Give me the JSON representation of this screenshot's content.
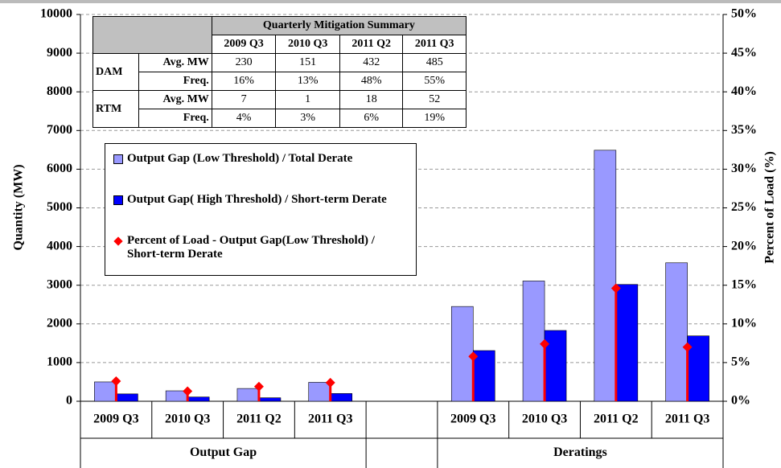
{
  "chart_data": {
    "type": "bar",
    "y_label": "Quantity (MW)",
    "y2_label": "Percent of Load (%)",
    "categories": [
      "2009 Q3",
      "2010 Q3",
      "2011 Q2",
      "2011 Q3",
      null,
      "2009 Q3",
      "2010 Q3",
      "2011 Q2",
      "2011 Q3"
    ],
    "groups": [
      {
        "label": "Output Gap",
        "start": 0,
        "end": 3
      },
      {
        "label": "Deratings",
        "start": 5,
        "end": 8
      }
    ],
    "series": [
      {
        "name": "Output Gap (Low Threshold) / Total Derate",
        "color": "#9999ff",
        "kind": "bar",
        "values": [
          500,
          270,
          330,
          490,
          null,
          2450,
          3110,
          6490,
          3580
        ]
      },
      {
        "name": "Output Gap( High Threshold) / Short-term Derate",
        "color": "#0000ff",
        "kind": "bar",
        "values": [
          190,
          110,
          90,
          200,
          null,
          1310,
          1830,
          3020,
          1690
        ]
      },
      {
        "name": "Percent of Load - Output Gap(Low Threshold) / Short-term Derate",
        "color": "#ff0000",
        "kind": "marker",
        "axis": "y2",
        "values": [
          2.6,
          1.3,
          1.9,
          2.4,
          null,
          5.8,
          7.4,
          14.6,
          7.0
        ]
      }
    ],
    "ylim": [
      0,
      10000
    ],
    "yticks": [
      0,
      1000,
      2000,
      3000,
      4000,
      5000,
      6000,
      7000,
      8000,
      9000,
      10000
    ],
    "y2lim": [
      0,
      50
    ],
    "y2ticks": [
      {
        "value": 0,
        "label": "0%"
      },
      {
        "value": 5,
        "label": "5%"
      },
      {
        "value": 10,
        "label": "10%"
      },
      {
        "value": 15,
        "label": "15%"
      },
      {
        "value": 20,
        "label": "20%"
      },
      {
        "value": 25,
        "label": "25%"
      },
      {
        "value": 30,
        "label": "30%"
      },
      {
        "value": 35,
        "label": "35%"
      },
      {
        "value": 40,
        "label": "40%"
      },
      {
        "value": 45,
        "label": "45%"
      },
      {
        "value": 50,
        "label": "50%"
      }
    ],
    "grid": true,
    "table": {
      "title": "Quarterly Mitigation Summary",
      "columns": [
        "2009 Q3",
        "2010 Q3",
        "2011 Q2",
        "2011 Q3"
      ],
      "rows": [
        {
          "group": "DAM",
          "metrics": [
            {
              "name": "Avg. MW",
              "values": [
                230,
                151,
                432,
                485
              ]
            },
            {
              "name": "Freq.",
              "values": [
                "16%",
                "13%",
                "48%",
                "55%"
              ]
            }
          ]
        },
        {
          "group": "RTM",
          "metrics": [
            {
              "name": "Avg. MW",
              "values": [
                7,
                1,
                18,
                52
              ]
            },
            {
              "name": "Freq.",
              "values": [
                "4%",
                "3%",
                "6%",
                "19%"
              ]
            }
          ]
        }
      ]
    }
  }
}
